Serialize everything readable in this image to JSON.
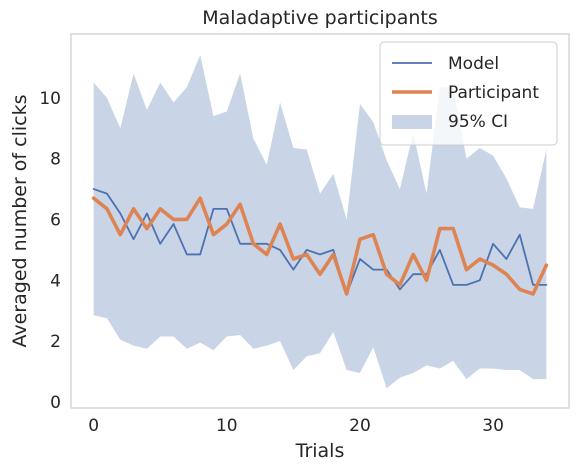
{
  "chart_data": {
    "type": "line",
    "title": "Maladaptive participants",
    "xlabel": "Trials",
    "ylabel": "Averaged number of clicks",
    "xlim": [
      -1.7,
      35.7
    ],
    "ylim": [
      -0.2,
      12.1
    ],
    "xticks": [
      0,
      10,
      20,
      30
    ],
    "yticks": [
      0,
      2,
      4,
      6,
      8,
      10
    ],
    "grid": false,
    "legend_position": "top-right",
    "x": [
      0,
      1,
      2,
      3,
      4,
      5,
      6,
      7,
      8,
      9,
      10,
      11,
      12,
      13,
      14,
      15,
      16,
      17,
      18,
      19,
      20,
      21,
      22,
      23,
      24,
      25,
      26,
      27,
      28,
      29,
      30,
      31,
      32,
      33,
      34
    ],
    "series": [
      {
        "name": "Model",
        "color": "#4c72b0",
        "values": [
          7.0,
          6.85,
          6.2,
          5.35,
          6.2,
          5.2,
          5.85,
          4.85,
          4.85,
          6.35,
          6.35,
          5.2,
          5.2,
          5.2,
          5.0,
          4.35,
          5.0,
          4.85,
          5.0,
          3.55,
          4.7,
          4.35,
          4.35,
          3.7,
          4.2,
          4.2,
          5.0,
          3.85,
          3.85,
          4.0,
          5.2,
          4.7,
          5.5,
          3.85,
          3.85
        ]
      },
      {
        "name": "Participant",
        "color": "#dd8452",
        "values": [
          6.7,
          6.35,
          5.5,
          6.35,
          5.7,
          6.35,
          6.0,
          6.0,
          6.7,
          5.5,
          5.85,
          6.5,
          5.2,
          4.85,
          5.85,
          4.7,
          4.85,
          4.2,
          4.85,
          3.55,
          5.35,
          5.5,
          4.2,
          3.85,
          4.85,
          4.0,
          5.7,
          5.7,
          4.35,
          4.7,
          4.5,
          4.2,
          3.7,
          3.55,
          4.5
        ]
      }
    ],
    "ci": {
      "name": "95% CI",
      "color": "#4c72b0",
      "opacity": 0.3,
      "upper": [
        10.5,
        10.0,
        9.0,
        10.8,
        9.6,
        10.5,
        9.85,
        10.35,
        11.4,
        9.4,
        9.55,
        10.8,
        8.65,
        7.8,
        9.85,
        8.35,
        8.3,
        6.85,
        7.5,
        6.0,
        9.8,
        9.2,
        7.95,
        7.0,
        8.85,
        6.85,
        10.35,
        10.35,
        8.0,
        8.35,
        8.1,
        7.35,
        6.4,
        6.35,
        8.3
      ],
      "lower": [
        2.85,
        2.75,
        2.05,
        1.85,
        1.75,
        2.15,
        2.15,
        1.75,
        1.95,
        1.7,
        2.15,
        2.2,
        1.75,
        1.85,
        2.0,
        1.05,
        1.5,
        1.6,
        2.3,
        1.05,
        0.95,
        1.8,
        0.45,
        0.8,
        0.95,
        1.2,
        1.1,
        1.35,
        0.75,
        1.1,
        1.1,
        1.05,
        1.05,
        0.75,
        0.75
      ]
    }
  }
}
